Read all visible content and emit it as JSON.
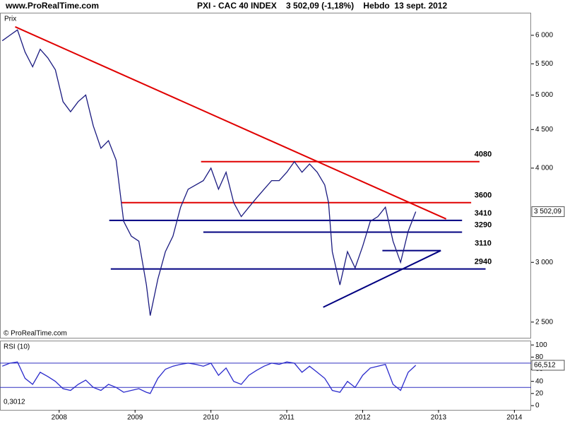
{
  "header": {
    "site": "www.ProRealTime.com",
    "title": "PXI - CAC 40 INDEX    3 502,09 (-1,18%)    Hebdo  13 sept. 2012"
  },
  "chart_data": [
    {
      "type": "line",
      "y_label": "Prix",
      "credit": "© ProRealTime.com",
      "log_scale": true,
      "x": [
        2007.25,
        2007.35,
        2007.45,
        2007.55,
        2007.65,
        2007.75,
        2007.85,
        2007.95,
        2008.05,
        2008.15,
        2008.25,
        2008.35,
        2008.45,
        2008.55,
        2008.65,
        2008.75,
        2008.85,
        2008.95,
        2009.05,
        2009.15,
        2009.2,
        2009.3,
        2009.4,
        2009.5,
        2009.6,
        2009.7,
        2009.8,
        2009.9,
        2010.0,
        2010.1,
        2010.2,
        2010.3,
        2010.4,
        2010.5,
        2010.6,
        2010.7,
        2010.8,
        2010.9,
        2011.0,
        2011.1,
        2011.2,
        2011.3,
        2011.4,
        2011.5,
        2011.55,
        2011.6,
        2011.7,
        2011.8,
        2011.9,
        2012.0,
        2012.1,
        2012.2,
        2012.3,
        2012.4,
        2012.5,
        2012.6,
        2012.7
      ],
      "series": [
        {
          "name": "CAC 40",
          "color": "#1a1a80",
          "values": [
            5900,
            6000,
            6100,
            5700,
            5450,
            5750,
            5600,
            5400,
            4900,
            4750,
            4900,
            5000,
            4550,
            4250,
            4350,
            4100,
            3400,
            3250,
            3200,
            2800,
            2550,
            2850,
            3100,
            3250,
            3550,
            3750,
            3800,
            3850,
            4000,
            3750,
            3950,
            3600,
            3450,
            3550,
            3650,
            3750,
            3850,
            3850,
            3950,
            4080,
            3950,
            4050,
            3950,
            3800,
            3600,
            3100,
            2800,
            3100,
            2950,
            3150,
            3400,
            3450,
            3550,
            3200,
            3000,
            3300,
            3502.09
          ]
        }
      ],
      "last": {
        "value": 3502.09,
        "label": "3 502,09"
      },
      "levels": [
        {
          "value": 4080,
          "color": "#e00000",
          "x": [
            2009.87,
            2013.54
          ]
        },
        {
          "value": 3600,
          "color": "#e00000",
          "x": [
            2008.82,
            2013.43
          ]
        },
        {
          "value": 3410,
          "color": "#000080",
          "x": [
            2008.66,
            2013.31
          ]
        },
        {
          "value": 3290,
          "color": "#000080",
          "x": [
            2009.9,
            2013.31
          ]
        },
        {
          "value": 3110,
          "color": "#000080",
          "x": [
            2012.26,
            2013.03
          ]
        },
        {
          "value": 2940,
          "color": "#000080",
          "x": [
            2008.68,
            2013.62
          ]
        }
      ],
      "trendlines": [
        {
          "color": "#e00000",
          "x": [
            2007.42,
            2013.1
          ],
          "y": [
            6157,
            3425
          ]
        },
        {
          "color": "#000080",
          "x": [
            2011.48,
            2013.03
          ],
          "y": [
            2616,
            3110
          ]
        }
      ],
      "xlim": [
        2007.22,
        2014.22
      ],
      "ylim": [
        2383,
        6428
      ],
      "yticks": [
        {
          "value": 2500,
          "label": "2 500"
        },
        {
          "value": 3000,
          "label": "3 000"
        },
        {
          "value": 4000,
          "label": "4 000"
        },
        {
          "value": 4500,
          "label": "4 500"
        },
        {
          "value": 5000,
          "label": "5 000"
        },
        {
          "value": 5500,
          "label": "5 500"
        },
        {
          "value": 6000,
          "label": "6 000"
        }
      ]
    },
    {
      "type": "line",
      "title": "RSI (10)",
      "note": "0,3012",
      "x": [
        2007.25,
        2007.35,
        2007.45,
        2007.55,
        2007.65,
        2007.75,
        2007.85,
        2007.95,
        2008.05,
        2008.15,
        2008.25,
        2008.35,
        2008.45,
        2008.55,
        2008.65,
        2008.75,
        2008.85,
        2008.95,
        2009.05,
        2009.15,
        2009.2,
        2009.3,
        2009.4,
        2009.5,
        2009.6,
        2009.7,
        2009.8,
        2009.9,
        2010.0,
        2010.1,
        2010.2,
        2010.3,
        2010.4,
        2010.5,
        2010.6,
        2010.7,
        2010.8,
        2010.9,
        2011.0,
        2011.1,
        2011.2,
        2011.3,
        2011.4,
        2011.5,
        2011.55,
        2011.6,
        2011.7,
        2011.8,
        2011.9,
        2012.0,
        2012.1,
        2012.2,
        2012.3,
        2012.4,
        2012.5,
        2012.6,
        2012.7
      ],
      "series": [
        {
          "name": "RSI (10)",
          "color": "#2b2bcc",
          "values": [
            65,
            70,
            72,
            45,
            35,
            55,
            48,
            40,
            28,
            25,
            35,
            42,
            30,
            25,
            35,
            30,
            22,
            25,
            28,
            22,
            20,
            45,
            60,
            65,
            68,
            70,
            68,
            65,
            70,
            50,
            62,
            40,
            35,
            50,
            58,
            65,
            70,
            68,
            72,
            70,
            55,
            65,
            55,
            45,
            35,
            25,
            22,
            40,
            30,
            50,
            62,
            65,
            68,
            35,
            25,
            55,
            66.512
          ]
        }
      ],
      "last": {
        "value": 66.512,
        "label": "66,512"
      },
      "bands": [
        70,
        30
      ],
      "xlim": [
        2007.22,
        2014.22
      ],
      "ylim": [
        -7,
        106
      ],
      "xticks": [
        2008,
        2009,
        2010,
        2011,
        2012,
        2013,
        2014
      ],
      "yticks": [
        0,
        20,
        40,
        60,
        80,
        100
      ]
    }
  ]
}
